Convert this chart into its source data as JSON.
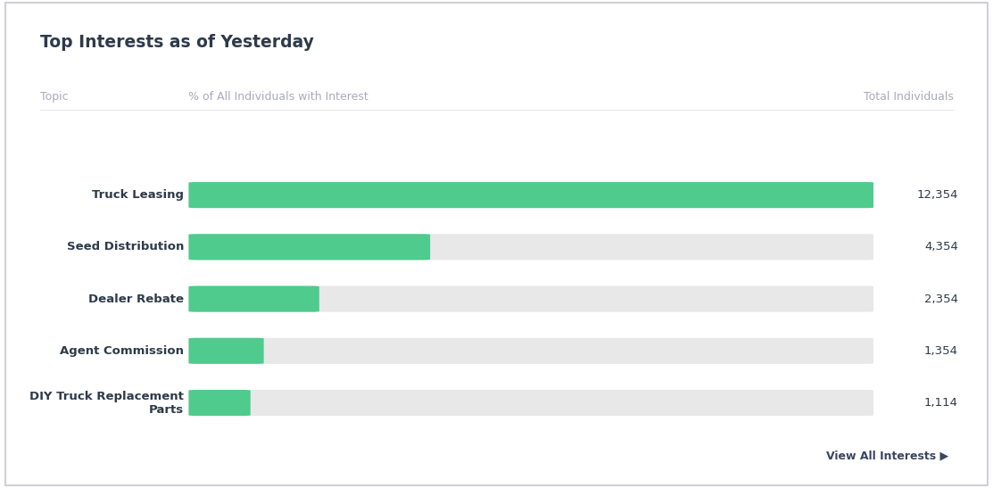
{
  "title": "Top Interests as of Yesterday",
  "col_topic": "Topic",
  "col_pct": "% of All Individuals with Interest",
  "col_total": "Total Individuals",
  "categories": [
    "Truck Leasing",
    "Seed Distribution",
    "Dealer Rebate",
    "Agent Commission",
    "DIY Truck Replacement\nParts"
  ],
  "values": [
    12354,
    4354,
    2354,
    1354,
    1114
  ],
  "max_value": 12354,
  "value_labels": [
    "12,354",
    "4,354",
    "2,354",
    "1,354",
    "1,114"
  ],
  "bar_color": "#4ecb8d",
  "bg_bar_color": "#e8e8e8",
  "background_color": "#ffffff",
  "border_color": "#d0d0d8",
  "title_color": "#2e3a4a",
  "label_color": "#2e3a4a",
  "header_color": "#aaaabc",
  "value_color": "#2e3a4a",
  "link_color": "#3a4560",
  "view_all_text": "View All Interests ▶"
}
